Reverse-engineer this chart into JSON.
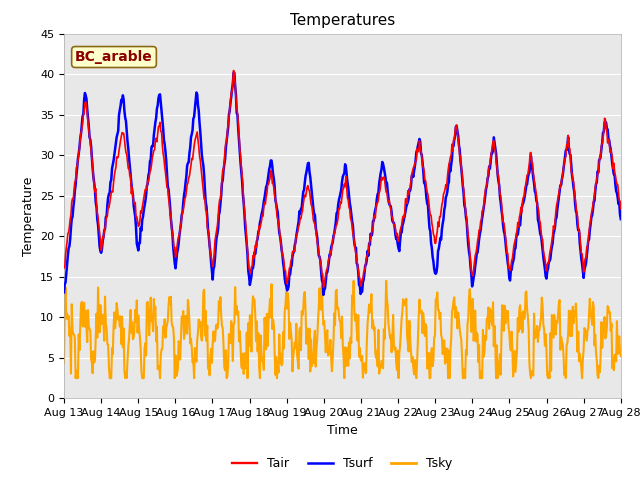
{
  "title": "Temperatures",
  "xlabel": "Time",
  "ylabel": "Temperature",
  "ylim": [
    0,
    45
  ],
  "yticks": [
    0,
    5,
    10,
    15,
    20,
    25,
    30,
    35,
    40,
    45
  ],
  "xtick_labels": [
    "Aug 13",
    "Aug 14",
    "Aug 15",
    "Aug 16",
    "Aug 17",
    "Aug 18",
    "Aug 19",
    "Aug 20",
    "Aug 21",
    "Aug 22",
    "Aug 23",
    "Aug 24",
    "Aug 25",
    "Aug 26",
    "Aug 27",
    "Aug 28"
  ],
  "annotation_text": "BC_arable",
  "annotation_color": "#8B0000",
  "annotation_bg": "#FFFFCC",
  "annotation_border": "#8B6914",
  "fig_bg": "#FFFFFF",
  "plot_bg": "#E8E8E8",
  "color_tair": "#FF0000",
  "color_tsurf": "#0000FF",
  "color_tsky": "#FFA500",
  "lw_tair": 1.2,
  "lw_tsurf": 1.8,
  "lw_tsky": 1.5,
  "title_fontsize": 11,
  "label_fontsize": 9,
  "tick_fontsize": 8,
  "legend_fontsize": 9,
  "tair_peaks": [
    37.0,
    33.0,
    34.0,
    33.0,
    40.5,
    28.0,
    26.5,
    27.0,
    27.5,
    31.5,
    34.0,
    32.0,
    30.0,
    32.0,
    34.0
  ],
  "tair_troughs": [
    16.0,
    18.5,
    21.0,
    17.5,
    16.0,
    15.0,
    14.5,
    14.0,
    13.5,
    19.5,
    19.0,
    15.0,
    15.5,
    15.5,
    16.0,
    24.0
  ],
  "tsurf_peak_offset": [
    1.0,
    5.0,
    4.0,
    5.0,
    0.0,
    1.5,
    2.5,
    2.0,
    1.5,
    0.5,
    0.0,
    0.0,
    -0.5,
    0.0,
    0.5
  ],
  "tsurf_trough_offset": [
    -3.0,
    -1.0,
    -3.0,
    -1.5,
    -1.5,
    -1.0,
    -1.5,
    -1.0,
    -1.0,
    -1.0,
    -4.0,
    -1.0,
    -1.0,
    -1.0,
    -1.0,
    -1.5
  ],
  "tsky_base": 7.5,
  "tsky_amp": 3.5,
  "tsky_freq": 2.2,
  "tsky_noise": 1.5
}
